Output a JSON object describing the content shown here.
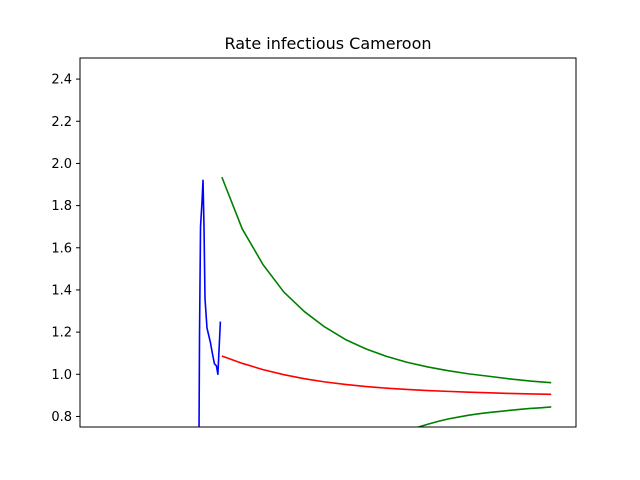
{
  "chart_data": {
    "type": "line",
    "title": "Rate infectious Cameroon",
    "xlabel": "",
    "ylabel": "",
    "x_range": [
      0,
      100
    ],
    "ylim": [
      0.75,
      2.5
    ],
    "yticks": [
      0.8,
      1.0,
      1.2,
      1.4,
      1.6,
      1.8,
      2.0,
      2.2,
      2.4
    ],
    "ytick_labels": [
      "0.8",
      "1.0",
      "1.2",
      "1.4",
      "1.6",
      "1.8",
      "2.0",
      "2.2",
      "2.4"
    ],
    "grid": false,
    "legend": "none",
    "series": [
      {
        "color": "#0000ff",
        "x": [
          24.0,
          24.1,
          24.3,
          24.6,
          24.8,
          25.0,
          25.2,
          25.6,
          26.3,
          26.6,
          27.1,
          27.5,
          27.8,
          28.3
        ],
        "y": [
          0.75,
          1.2,
          1.7,
          1.82,
          1.92,
          1.7,
          1.36,
          1.22,
          1.15,
          1.11,
          1.05,
          1.04,
          1.0,
          1.25
        ]
      },
      {
        "color": "#ff0000",
        "x": [
          28.6,
          32.7,
          36.9,
          41.1,
          45.2,
          49.3,
          53.5,
          57.7,
          61.8,
          65.9,
          70.1,
          74.2,
          78.4,
          82.6,
          86.7,
          90.8,
          95.0
        ],
        "y": [
          1.087,
          1.052,
          1.022,
          0.998,
          0.979,
          0.964,
          0.952,
          0.942,
          0.934,
          0.928,
          0.923,
          0.919,
          0.915,
          0.912,
          0.909,
          0.907,
          0.905
        ]
      },
      {
        "color": "#008000",
        "x": [
          28.6,
          32.7,
          36.9,
          41.1,
          45.2,
          49.3,
          53.5,
          57.7,
          61.8,
          65.9,
          70.1,
          74.2,
          78.4,
          82.6,
          86.7,
          90.8,
          95.0
        ],
        "y": [
          1.935,
          1.69,
          1.52,
          1.39,
          1.298,
          1.225,
          1.165,
          1.12,
          1.085,
          1.057,
          1.035,
          1.017,
          1.002,
          0.99,
          0.978,
          0.968,
          0.96
        ]
      },
      {
        "color": "#008000",
        "x": [
          68.0,
          70.1,
          72.1,
          74.2,
          76.3,
          78.4,
          80.5,
          82.6,
          84.6,
          86.7,
          88.8,
          90.8,
          92.9,
          95.0
        ],
        "y": [
          0.748,
          0.763,
          0.776,
          0.788,
          0.797,
          0.806,
          0.813,
          0.819,
          0.824,
          0.829,
          0.834,
          0.838,
          0.841,
          0.845
        ]
      }
    ]
  }
}
